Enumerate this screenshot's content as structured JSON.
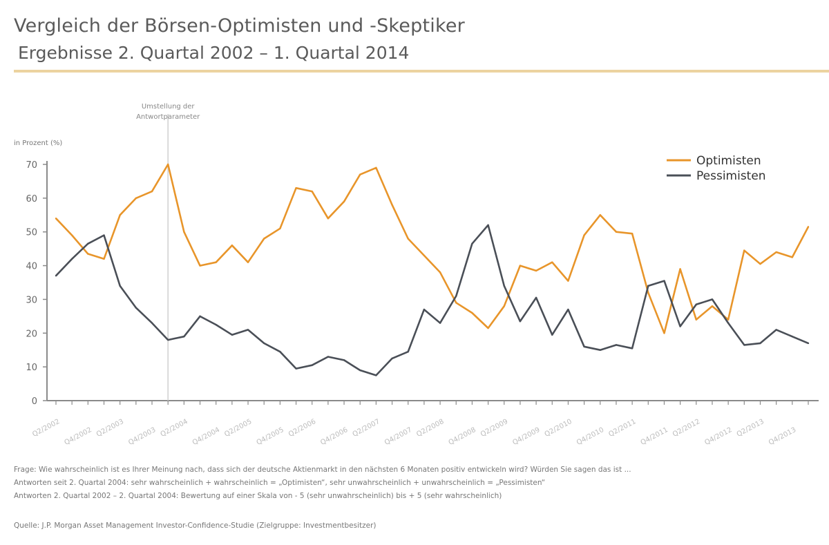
{
  "title": "Vergleich der Börsen-Optimisten und -Skeptiker",
  "subtitle": "Ergebnisse 2. Quartal 2002 – 1. Quartal 2014",
  "annotation": [
    "Umstellung der",
    "Antwortparameter"
  ],
  "footnotes": [
    "Frage: Wie wahrscheinlich ist es Ihrer Meinung nach, dass sich der deutsche Aktienmarkt in den nächsten 6 Monaten positiv entwickeln wird? Würden Sie sagen das ist ...",
    "Antworten seit 2. Quartal 2004: sehr wahrscheinlich + wahrscheinlich = „Optimisten“, sehr unwahrscheinlich + unwahrscheinlich = „Pessimisten“",
    "Antworten 2. Quartal 2002 – 2. Quartal 2004: Bewertung auf einer Skala von - 5 (sehr unwahrscheinlich) bis + 5 (sehr wahrscheinlich)"
  ],
  "source": "Quelle: J.P. Morgan Asset Management Investor-Confidence-Studie (Zielgruppe: Investmentbesitzer)",
  "chart_data": {
    "type": "line",
    "ylabel": "in Prozent (%)",
    "ylim": [
      0,
      70
    ],
    "yticks": [
      0,
      10,
      20,
      30,
      40,
      50,
      60,
      70
    ],
    "grid": false,
    "legend_position": "top-right",
    "x_tick_labels": [
      "Q2/2002",
      "Q4/2002",
      "Q2/2003",
      "Q4/2003",
      "Q2/2004",
      "Q4/2004",
      "Q2/2005",
      "Q4/2005",
      "Q2/2006",
      "Q4/2006",
      "Q2/2007",
      "Q4/2007",
      "Q2/2008",
      "Q4/2008",
      "Q2/2009",
      "Q4/2009",
      "Q2/2010",
      "Q4/2010",
      "Q2/2011",
      "Q4/2011",
      "Q2/2012",
      "Q4/2012",
      "Q2/2013",
      "Q4/2013"
    ],
    "x_range": [
      "Q2/2002",
      "Q1/2014"
    ],
    "marker_between": [
      "Q4/2003",
      "Q2/2004"
    ],
    "series": [
      {
        "name": "Optimisten",
        "color": "#e8952a",
        "values": [
          54,
          49,
          43.5,
          42,
          55,
          60,
          62,
          70,
          50,
          40,
          41,
          46,
          41,
          48,
          51,
          63,
          62,
          54,
          59,
          67,
          69,
          58,
          48,
          43,
          38,
          29,
          26,
          21.5,
          28,
          40,
          38.5,
          41,
          35.5,
          49,
          55,
          50,
          49.5,
          32,
          20,
          39,
          24,
          28,
          24,
          44.5,
          40.5,
          44,
          42.5,
          51.5
        ]
      },
      {
        "name": "Pessimisten",
        "color": "#4a4f57",
        "values": [
          37,
          42,
          46.5,
          49,
          34,
          27.5,
          23,
          18,
          19,
          25,
          22.5,
          19.5,
          21,
          17,
          14.5,
          9.5,
          10.5,
          13,
          12,
          9,
          7.5,
          12.5,
          14.5,
          27,
          23,
          31,
          46.5,
          52,
          34,
          23.5,
          30.5,
          19.5,
          27,
          16,
          15,
          16.5,
          15.5,
          34,
          35.5,
          22,
          28.5,
          30,
          23,
          16.5,
          17,
          21,
          19,
          17
        ]
      }
    ]
  }
}
